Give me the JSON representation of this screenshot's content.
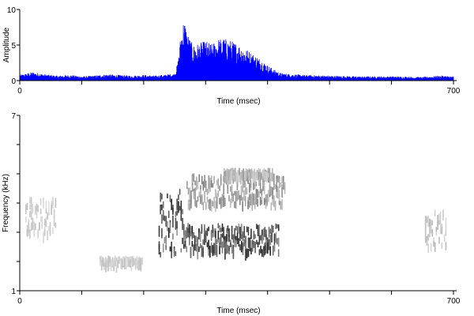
{
  "chart_data": [
    {
      "type": "area",
      "panel": "waveform",
      "xlabel": "Time (msec)",
      "ylabel": "Amplitude",
      "xlim": [
        0,
        700
      ],
      "ylim": [
        0,
        10
      ],
      "x_tick_labels": [
        "0",
        "700"
      ],
      "y_tick_labels": [
        "0",
        "5",
        "10"
      ],
      "color": "#0000ff",
      "envelope": {
        "x": [
          0,
          20,
          40,
          60,
          80,
          100,
          120,
          140,
          160,
          180,
          200,
          220,
          250,
          255,
          260,
          265,
          270,
          275,
          280,
          290,
          300,
          310,
          320,
          330,
          340,
          350,
          360,
          370,
          380,
          390,
          400,
          410,
          420,
          440,
          460,
          500,
          550,
          600,
          650,
          680,
          700
        ],
        "y": [
          0.8,
          1.2,
          0.9,
          0.7,
          0.8,
          0.6,
          0.7,
          0.9,
          0.8,
          0.7,
          0.8,
          0.7,
          1.0,
          2.5,
          6.5,
          9.0,
          7.0,
          5.8,
          5.0,
          5.3,
          5.6,
          5.2,
          5.9,
          6.0,
          5.7,
          5.3,
          4.8,
          4.2,
          3.6,
          3.0,
          2.2,
          1.6,
          1.1,
          0.9,
          0.8,
          0.7,
          0.6,
          0.6,
          0.5,
          0.7,
          0.6
        ]
      }
    },
    {
      "type": "heatmap",
      "panel": "spectrogram",
      "xlabel": "Time (msec)",
      "ylabel": "Frequency (kHz)",
      "xlim": [
        0,
        700
      ],
      "ylim": [
        1,
        7
      ],
      "x_tick_labels": [
        "0",
        "700"
      ],
      "y_tick_labels": [
        "1",
        "7"
      ],
      "colormap": "grayscale (white = low energy, black = high energy)",
      "energy_regions": [
        {
          "t0": 10,
          "t1": 60,
          "f0": 3.0,
          "f1": 4.2,
          "intensity": 0.25
        },
        {
          "t0": 130,
          "t1": 200,
          "f0": 2.0,
          "f1": 2.2,
          "intensity": 0.25
        },
        {
          "t0": 225,
          "t1": 265,
          "f0": 2.3,
          "f1": 4.6,
          "intensity": 0.9
        },
        {
          "t0": 265,
          "t1": 420,
          "f0": 2.4,
          "f1": 3.3,
          "intensity": 0.85
        },
        {
          "t0": 270,
          "t1": 430,
          "f0": 4.0,
          "f1": 5.0,
          "intensity": 0.5
        },
        {
          "t0": 330,
          "t1": 410,
          "f0": 5.0,
          "f1": 5.2,
          "intensity": 0.4
        },
        {
          "t0": 655,
          "t1": 690,
          "f0": 2.6,
          "f1": 3.8,
          "intensity": 0.3
        }
      ]
    }
  ]
}
